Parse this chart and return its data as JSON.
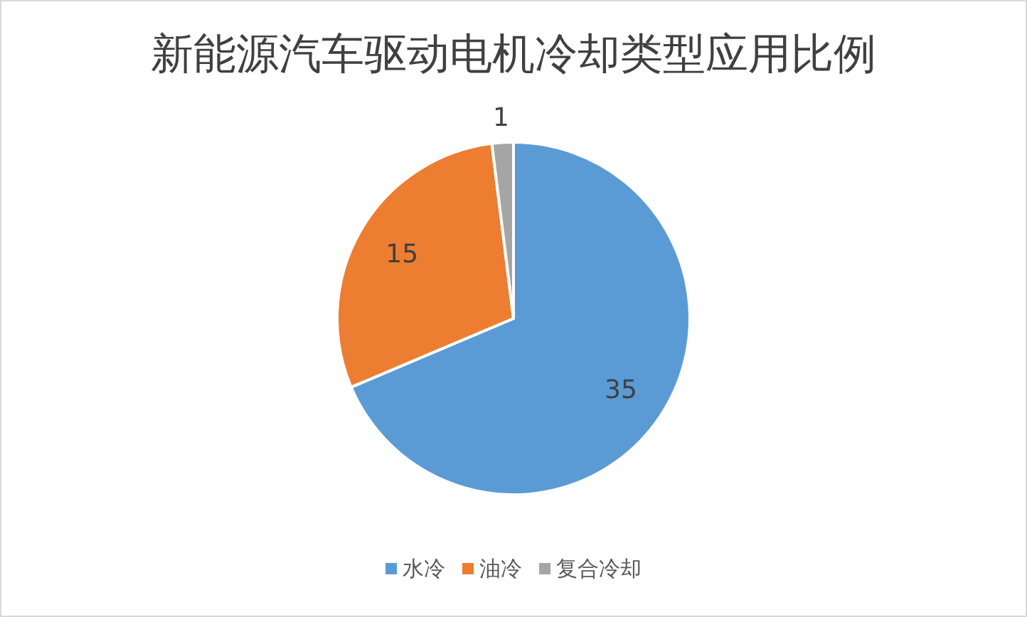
{
  "chart_data": {
    "type": "pie",
    "title": "新能源汽车驱动电机冷却类型应用比例",
    "categories": [
      "水冷",
      "油冷",
      "复合冷却"
    ],
    "values": [
      35,
      15,
      1
    ],
    "colors": [
      "#5b9bd5",
      "#ed7d31",
      "#a5a5a5"
    ],
    "data_labels": true,
    "legend": "bottom"
  }
}
